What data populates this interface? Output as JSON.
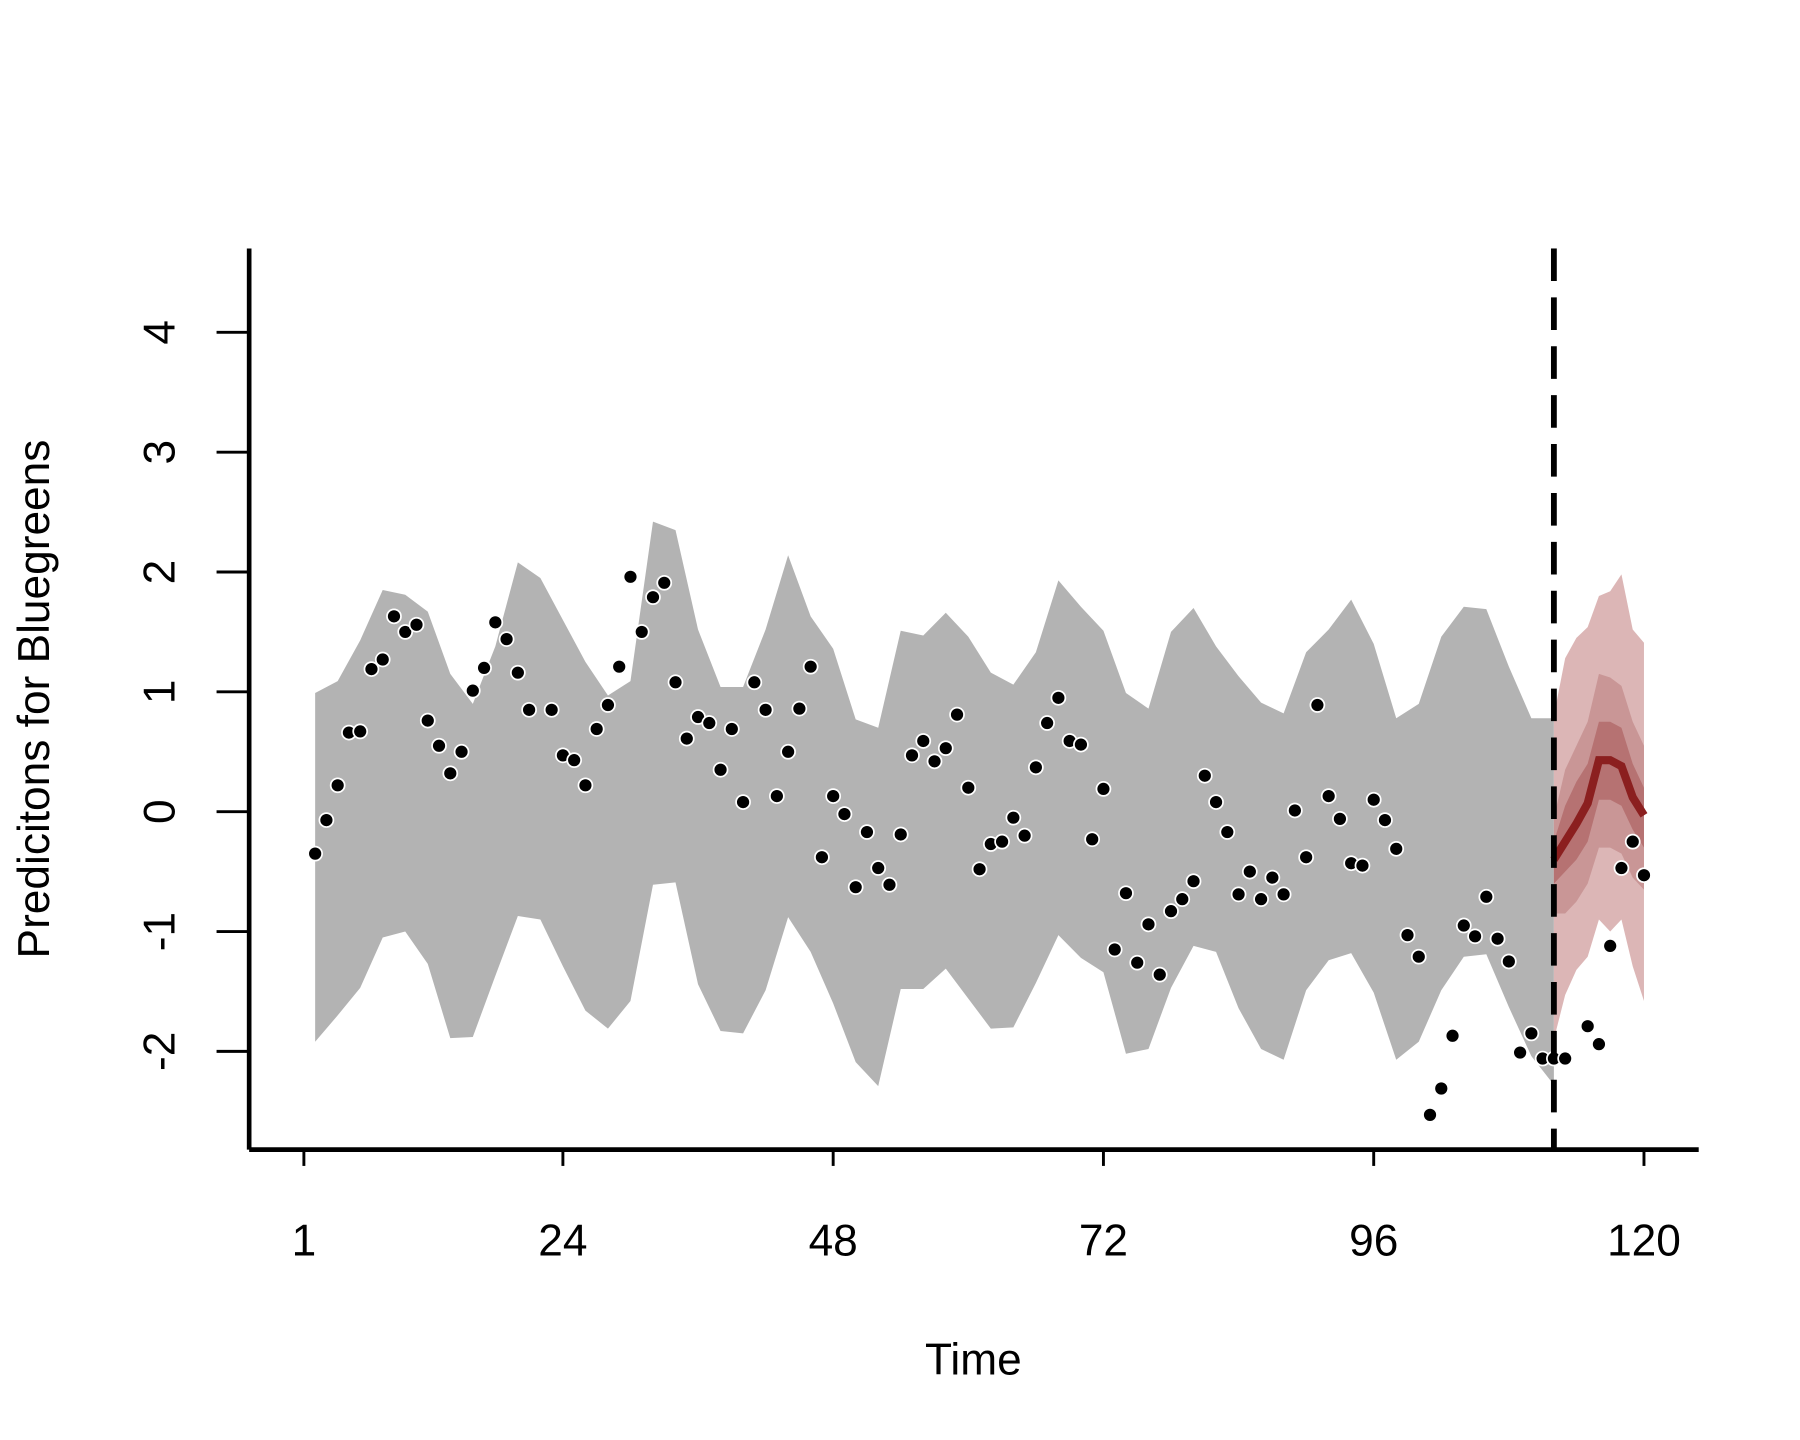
{
  "chart_data": {
    "type": "forecast",
    "xlabel": "Time",
    "ylabel": "Predicitons for Bluegreens",
    "xlim": [
      -3.86,
      124.86
    ],
    "ylim": [
      -2.82,
      4.7
    ],
    "xticks": [
      1,
      24,
      48,
      72,
      96,
      120
    ],
    "yticks": [
      -2,
      -1,
      0,
      1,
      2,
      3,
      4
    ],
    "vline": 112,
    "band": {
      "color": "#b3b3b3",
      "x": [
        2,
        4,
        6,
        8,
        10,
        12,
        14,
        16,
        18,
        20,
        22,
        24,
        26,
        28,
        30,
        32,
        34,
        36,
        38,
        40,
        42,
        44,
        46,
        48,
        50,
        52,
        54,
        56,
        58,
        60,
        62,
        64,
        66,
        68,
        70,
        72,
        74,
        76,
        78,
        80,
        82,
        84,
        86,
        88,
        90,
        92,
        94,
        96,
        98,
        100,
        102,
        104,
        106,
        108,
        110,
        112
      ],
      "upper": [
        0.99,
        1.09,
        1.43,
        1.85,
        1.81,
        1.67,
        1.15,
        0.9,
        1.38,
        2.08,
        1.95,
        1.6,
        1.25,
        0.97,
        1.09,
        2.42,
        2.35,
        1.52,
        1.04,
        1.04,
        1.52,
        2.14,
        1.63,
        1.36,
        0.77,
        0.7,
        1.51,
        1.47,
        1.66,
        1.46,
        1.16,
        1.06,
        1.33,
        1.93,
        1.71,
        1.51,
        0.99,
        0.86,
        1.5,
        1.7,
        1.38,
        1.13,
        0.91,
        0.82,
        1.33,
        1.52,
        1.77,
        1.4,
        0.78,
        0.9,
        1.46,
        1.71,
        1.69,
        1.21,
        0.78,
        0.78
      ],
      "lower": [
        -1.92,
        -1.7,
        -1.47,
        -1.05,
        -1.0,
        -1.27,
        -1.89,
        -1.88,
        -1.37,
        -0.87,
        -0.9,
        -1.29,
        -1.66,
        -1.81,
        -1.58,
        -0.61,
        -0.59,
        -1.44,
        -1.83,
        -1.85,
        -1.49,
        -0.88,
        -1.17,
        -1.6,
        -2.09,
        -2.29,
        -1.48,
        -1.48,
        -1.31,
        -1.56,
        -1.81,
        -1.8,
        -1.43,
        -1.03,
        -1.22,
        -1.34,
        -2.02,
        -1.98,
        -1.47,
        -1.12,
        -1.17,
        -1.64,
        -1.98,
        -2.07,
        -1.49,
        -1.24,
        -1.18,
        -1.51,
        -2.07,
        -1.92,
        -1.49,
        -1.21,
        -1.19,
        -1.63,
        -2.04,
        -2.28
      ]
    },
    "forecast": {
      "x": [
        112,
        113,
        114,
        115,
        116,
        117,
        118,
        119,
        120
      ],
      "color": "#8b1f1f",
      "median": [
        -0.4,
        -0.25,
        -0.1,
        0.07,
        0.43,
        0.43,
        0.38,
        0.12,
        -0.03
      ],
      "bands": [
        {
          "color": "#dcb6b6",
          "upper": [
            0.8,
            1.28,
            1.45,
            1.54,
            1.8,
            1.84,
            1.98,
            1.52,
            1.41
          ],
          "lower": [
            -1.9,
            -1.53,
            -1.32,
            -1.21,
            -0.9,
            -1.0,
            -0.9,
            -1.29,
            -1.58
          ]
        },
        {
          "color": "#c99696",
          "upper": [
            -0.05,
            0.35,
            0.55,
            0.75,
            1.15,
            1.12,
            1.05,
            0.75,
            0.55
          ],
          "lower": [
            -0.85,
            -0.85,
            -0.75,
            -0.6,
            -0.3,
            -0.3,
            -0.35,
            -0.55,
            -0.65
          ]
        },
        {
          "color": "#b67272",
          "upper": [
            -0.25,
            0.05,
            0.25,
            0.4,
            0.75,
            0.75,
            0.7,
            0.4,
            0.2
          ],
          "lower": [
            -0.6,
            -0.5,
            -0.4,
            -0.25,
            0.1,
            0.1,
            0.05,
            -0.15,
            -0.3
          ]
        }
      ]
    },
    "points": {
      "color": "#000000",
      "x": [
        2,
        3,
        4,
        5,
        6,
        7,
        8,
        9,
        10,
        11,
        12,
        13,
        14,
        15,
        16,
        17,
        18,
        19,
        20,
        21,
        23,
        24,
        25,
        26,
        27,
        28,
        29,
        30,
        31,
        32,
        33,
        34,
        35,
        36,
        37,
        38,
        39,
        40,
        41,
        42,
        43,
        44,
        45,
        46,
        47,
        48,
        49,
        50,
        51,
        52,
        53,
        54,
        55,
        56,
        57,
        58,
        59,
        60,
        61,
        62,
        63,
        64,
        65,
        66,
        67,
        68,
        69,
        70,
        71,
        72,
        73,
        74,
        75,
        76,
        77,
        78,
        79,
        80,
        81,
        82,
        83,
        84,
        85,
        86,
        87,
        88,
        89,
        90,
        91,
        92,
        93,
        94,
        95,
        96,
        97,
        98,
        99,
        100,
        101,
        102,
        103,
        104,
        105,
        106,
        107,
        108,
        109,
        110,
        111,
        112,
        113,
        115,
        116,
        117,
        118,
        119,
        120
      ],
      "y": [
        -0.35,
        -0.07,
        0.22,
        0.66,
        0.67,
        1.19,
        1.27,
        1.63,
        1.5,
        1.56,
        0.76,
        0.55,
        0.32,
        0.5,
        1.01,
        1.2,
        1.58,
        1.44,
        1.16,
        0.85,
        0.85,
        0.47,
        0.43,
        0.22,
        0.69,
        0.89,
        1.21,
        1.96,
        1.5,
        1.79,
        1.91,
        1.08,
        0.61,
        0.79,
        0.74,
        0.35,
        0.69,
        0.08,
        1.08,
        0.85,
        0.13,
        0.5,
        0.86,
        1.21,
        -0.38,
        0.13,
        -0.02,
        -0.63,
        -0.17,
        -0.47,
        -0.61,
        -0.19,
        0.47,
        0.59,
        0.42,
        0.53,
        0.81,
        0.2,
        -0.48,
        -0.27,
        -0.25,
        -0.05,
        -0.2,
        0.37,
        0.74,
        0.95,
        0.59,
        0.56,
        -0.23,
        0.19,
        -1.15,
        -0.68,
        -1.26,
        -0.94,
        -1.36,
        -0.83,
        -0.73,
        -0.58,
        0.3,
        0.08,
        -0.17,
        -0.69,
        -0.5,
        -0.73,
        -0.55,
        -0.69,
        0.01,
        -0.38,
        0.89,
        0.13,
        -0.06,
        -0.43,
        -0.45,
        0.1,
        -0.07,
        -0.31,
        -1.03,
        -1.21,
        -2.53,
        -2.31,
        -1.87,
        -0.95,
        -1.04,
        -0.71,
        -1.06,
        -1.25,
        -2.01,
        -1.85,
        -2.06,
        -2.06,
        -2.06,
        -1.79,
        -1.94,
        -1.12,
        -0.47,
        -0.25,
        -0.53
      ]
    }
  }
}
